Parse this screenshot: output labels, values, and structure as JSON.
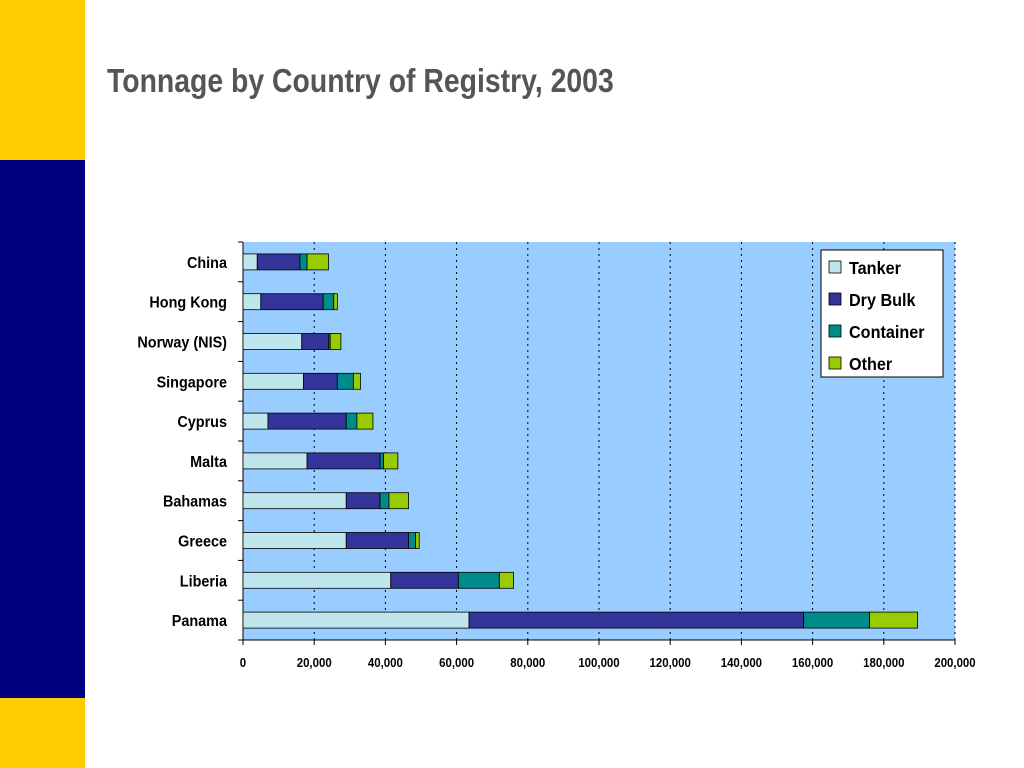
{
  "slide": {
    "title": "Tonnage by Country of Registry, 2003"
  },
  "colors": {
    "brand_gold": "#FFCC00",
    "brand_navy": "#000080",
    "plot_background": "#99CCFF",
    "title_text": "#555555"
  },
  "chart_data": {
    "type": "bar",
    "orientation": "horizontal",
    "stacked": true,
    "categories": [
      "China",
      "Hong Kong",
      "Norway (NIS)",
      "Singapore",
      "Cyprus",
      "Malta",
      "Bahamas",
      "Greece",
      "Liberia",
      "Panama"
    ],
    "series": [
      {
        "name": "Tanker",
        "color": "#BFE6EC",
        "values": [
          4000,
          5000,
          16500,
          17000,
          7000,
          18000,
          29000,
          29000,
          41500,
          63500
        ]
      },
      {
        "name": "Dry Bulk",
        "color": "#333399",
        "values": [
          12000,
          17500,
          7500,
          9500,
          22000,
          20500,
          9500,
          17500,
          19000,
          94000
        ]
      },
      {
        "name": "Container",
        "color": "#008B8B",
        "values": [
          2000,
          3000,
          500,
          4500,
          3000,
          1000,
          2500,
          2000,
          11500,
          18500
        ]
      },
      {
        "name": "Other",
        "color": "#99CC00",
        "values": [
          6000,
          1000,
          3000,
          2000,
          4500,
          4000,
          5500,
          1000,
          4000,
          13500
        ]
      }
    ],
    "xlim": [
      0,
      200000
    ],
    "x_ticks": [
      "0",
      "20,000",
      "40,000",
      "60,000",
      "80,000",
      "100,000",
      "120,000",
      "140,000",
      "160,000",
      "180,000",
      "200,000"
    ],
    "xlabel": "",
    "ylabel": "",
    "grid": "vertical dotted",
    "legend_position": "top-right"
  }
}
